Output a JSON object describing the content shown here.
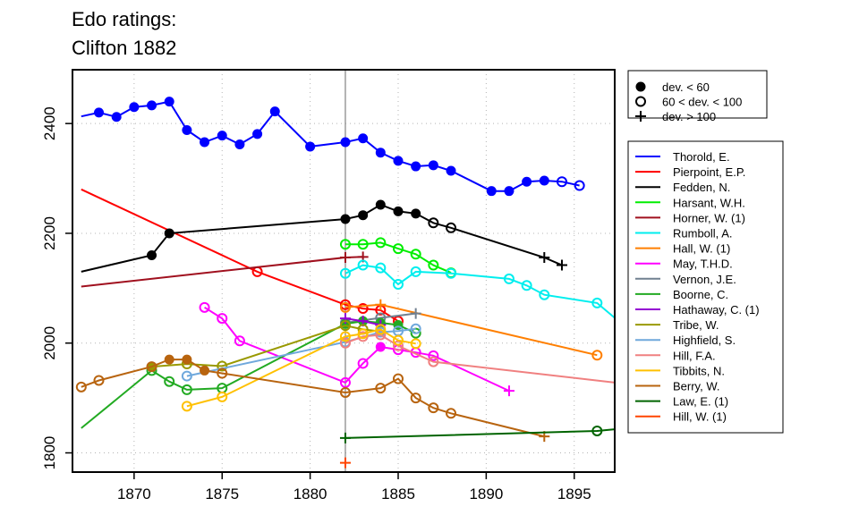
{
  "chart_data": {
    "type": "line",
    "title": [
      "Edo ratings:",
      "Clifton 1882"
    ],
    "xlabel": "",
    "ylabel": "",
    "xlim": [
      1866.5,
      1897.3
    ],
    "ylim": [
      1765,
      2498
    ],
    "x_ticks": [
      1870,
      1875,
      1880,
      1885,
      1890,
      1895
    ],
    "y_ticks": [
      1800,
      2000,
      2200,
      2400
    ],
    "grid": true,
    "reference_line_x": 1882,
    "marker_legend": [
      {
        "marker": "filled",
        "label": "dev. < 60"
      },
      {
        "marker": "open",
        "label": "60 < dev. < 100"
      },
      {
        "marker": "plus",
        "label": "dev. > 100"
      }
    ],
    "legend_position": "right",
    "series": [
      {
        "name": "Thorold, E.",
        "color": "#0000ff",
        "points": [
          [
            1867,
            2413,
            "none"
          ],
          [
            1868,
            2420,
            "filled"
          ],
          [
            1869,
            2412,
            "filled"
          ],
          [
            1870,
            2430,
            "filled"
          ],
          [
            1871,
            2433,
            "filled"
          ],
          [
            1872,
            2440,
            "filled"
          ],
          [
            1873,
            2388,
            "filled"
          ],
          [
            1874,
            2366,
            "filled"
          ],
          [
            1875,
            2378,
            "filled"
          ],
          [
            1876,
            2362,
            "filled"
          ],
          [
            1877,
            2381,
            "filled"
          ],
          [
            1878,
            2422,
            "filled"
          ],
          [
            1880,
            2358,
            "filled"
          ],
          [
            1882,
            2366,
            "filled"
          ],
          [
            1883,
            2373,
            "filled"
          ],
          [
            1884,
            2347,
            "filled"
          ],
          [
            1885,
            2332,
            "filled"
          ],
          [
            1886,
            2322,
            "filled"
          ],
          [
            1887,
            2324,
            "filled"
          ],
          [
            1888,
            2314,
            "filled"
          ],
          [
            1890.3,
            2277,
            "filled"
          ],
          [
            1891.3,
            2277,
            "filled"
          ],
          [
            1892.3,
            2294,
            "filled"
          ],
          [
            1893.3,
            2296,
            "filled"
          ],
          [
            1894.3,
            2294,
            "open"
          ],
          [
            1895.3,
            2287,
            "open"
          ]
        ]
      },
      {
        "name": "Pierpoint, E.P.",
        "color": "#ff0000",
        "points": [
          [
            1867,
            2280,
            "none"
          ],
          [
            1877,
            2130,
            "open"
          ],
          [
            1882,
            2070,
            "open"
          ],
          [
            1883,
            2063,
            "open"
          ],
          [
            1884,
            2060,
            "open"
          ],
          [
            1885,
            2040,
            "open"
          ]
        ]
      },
      {
        "name": "Fedden, N.",
        "color": "#000000",
        "points": [
          [
            1867,
            2130,
            "none"
          ],
          [
            1871,
            2160,
            "filled"
          ],
          [
            1872,
            2200,
            "filled"
          ],
          [
            1882,
            2226,
            "filled"
          ],
          [
            1883,
            2233,
            "filled"
          ],
          [
            1884,
            2252,
            "filled"
          ],
          [
            1885,
            2240,
            "filled"
          ],
          [
            1886,
            2236,
            "filled"
          ],
          [
            1887,
            2219,
            "open"
          ],
          [
            1888,
            2210,
            "open"
          ],
          [
            1893.3,
            2156,
            "plus"
          ],
          [
            1894.3,
            2142,
            "plus"
          ]
        ]
      },
      {
        "name": "Harsant, W.H.",
        "color": "#00ee00",
        "points": [
          [
            1882,
            2180,
            "open"
          ],
          [
            1883,
            2180,
            "open"
          ],
          [
            1884,
            2183,
            "open"
          ],
          [
            1885,
            2172,
            "open"
          ],
          [
            1886,
            2162,
            "open"
          ],
          [
            1887,
            2142,
            "open"
          ],
          [
            1888,
            2128,
            "open"
          ]
        ]
      },
      {
        "name": "Horner, W. (1)",
        "color": "#a0101e",
        "points": [
          [
            1867,
            2103,
            "none"
          ],
          [
            1882,
            2156,
            "plus"
          ],
          [
            1883,
            2157,
            "plus"
          ]
        ]
      },
      {
        "name": "Rumboll, A.",
        "color": "#00eeee",
        "points": [
          [
            1882,
            2127,
            "open"
          ],
          [
            1883,
            2142,
            "open"
          ],
          [
            1884,
            2137,
            "open"
          ],
          [
            1885,
            2107,
            "open"
          ],
          [
            1886,
            2130,
            "open"
          ],
          [
            1888,
            2127,
            "open"
          ],
          [
            1891.3,
            2117,
            "open"
          ],
          [
            1892.3,
            2105,
            "open"
          ],
          [
            1893.3,
            2088,
            "open"
          ],
          [
            1896.3,
            2073,
            "open"
          ],
          [
            1897.3,
            2046,
            "none"
          ]
        ]
      },
      {
        "name": "Hall, W. (1)",
        "color": "#ff7f00",
        "points": [
          [
            1882,
            2065,
            "open"
          ],
          [
            1884,
            2070,
            "plus"
          ],
          [
            1896.3,
            1978,
            "open"
          ]
        ]
      },
      {
        "name": "May, T.H.D.",
        "color": "#ff00ff",
        "points": [
          [
            1874,
            2065,
            "open"
          ],
          [
            1875,
            2045,
            "open"
          ],
          [
            1876,
            2004,
            "open"
          ],
          [
            1882,
            1928,
            "open"
          ],
          [
            1883,
            1963,
            "open"
          ],
          [
            1884,
            1993,
            "filled"
          ],
          [
            1885,
            1988,
            "open"
          ],
          [
            1886,
            1983,
            "open"
          ],
          [
            1887,
            1977,
            "open"
          ],
          [
            1891.3,
            1913,
            "plus"
          ]
        ]
      },
      {
        "name": "Vernon, J.E.",
        "color": "#708090",
        "points": [
          [
            1882,
            2037,
            "open"
          ],
          [
            1884,
            2046,
            "open"
          ],
          [
            1886,
            2054,
            "plus"
          ]
        ]
      },
      {
        "name": "Boorne, C.",
        "color": "#22aa22",
        "points": [
          [
            1867,
            1845,
            "none"
          ],
          [
            1871,
            1950,
            "open"
          ],
          [
            1872,
            1930,
            "open"
          ],
          [
            1873,
            1915,
            "open"
          ],
          [
            1875,
            1918,
            "open"
          ],
          [
            1882,
            2035,
            "filled"
          ],
          [
            1883,
            2040,
            "filled"
          ],
          [
            1884,
            2037,
            "filled"
          ],
          [
            1885,
            2033,
            "filled"
          ],
          [
            1886,
            2018,
            "open"
          ]
        ]
      },
      {
        "name": "Hathaway, C. (1)",
        "color": "#9400d3",
        "points": [
          [
            1882,
            2045,
            "plus"
          ],
          [
            1883,
            2040,
            "plus"
          ],
          [
            1884,
            2033,
            "plus"
          ]
        ]
      },
      {
        "name": "Tribe, W.",
        "color": "#999900",
        "points": [
          [
            1871,
            1957,
            "filled"
          ],
          [
            1873,
            1962,
            "open"
          ],
          [
            1875,
            1958,
            "open"
          ],
          [
            1882,
            2032,
            "open"
          ],
          [
            1883,
            2025,
            "open"
          ],
          [
            1884,
            2021,
            "open"
          ]
        ]
      },
      {
        "name": "Highfield, S.",
        "color": "#6fa8dc",
        "points": [
          [
            1873,
            1940,
            "open"
          ],
          [
            1882,
            2002,
            "open"
          ],
          [
            1884,
            2020,
            "open"
          ],
          [
            1885,
            2022,
            "open"
          ],
          [
            1886,
            2026,
            "open"
          ]
        ]
      },
      {
        "name": "Hill, F.A.",
        "color": "#f08080",
        "points": [
          [
            1882,
            2000,
            "open"
          ],
          [
            1883,
            2012,
            "open"
          ],
          [
            1884,
            2015,
            "open"
          ],
          [
            1885,
            1995,
            "open"
          ],
          [
            1887,
            1966,
            "open"
          ],
          [
            1897.3,
            1928,
            "none"
          ]
        ]
      },
      {
        "name": "Tibbits, N.",
        "color": "#ffc000",
        "points": [
          [
            1873,
            1885,
            "open"
          ],
          [
            1875,
            1902,
            "open"
          ],
          [
            1882,
            2012,
            "open"
          ],
          [
            1883,
            2017,
            "open"
          ],
          [
            1884,
            2025,
            "open"
          ],
          [
            1885,
            2005,
            "open"
          ],
          [
            1886,
            1999,
            "open"
          ]
        ]
      },
      {
        "name": "Berry, W.",
        "color": "#b8640f",
        "points": [
          [
            1867,
            1920,
            "open"
          ],
          [
            1868,
            1932,
            "open"
          ],
          [
            1871,
            1957,
            "open"
          ],
          [
            1872,
            1970,
            "filled"
          ],
          [
            1873,
            1970,
            "filled"
          ],
          [
            1874,
            1950,
            "filled"
          ],
          [
            1875,
            1945,
            "open"
          ],
          [
            1882,
            1910,
            "open"
          ],
          [
            1884,
            1918,
            "open"
          ],
          [
            1885,
            1935,
            "open"
          ],
          [
            1886,
            1900,
            "open"
          ],
          [
            1887,
            1882,
            "open"
          ],
          [
            1888,
            1872,
            "open"
          ],
          [
            1893.3,
            1830,
            "plus"
          ]
        ]
      },
      {
        "name": "Law, E. (1)",
        "color": "#006400",
        "points": [
          [
            1882,
            1827,
            "plus"
          ],
          [
            1896.3,
            1840,
            "open"
          ],
          [
            1897.3,
            1843,
            "none"
          ]
        ]
      },
      {
        "name": "Hill, W. (1)",
        "color": "#ff4500",
        "points": [
          [
            1882,
            1782,
            "plus"
          ]
        ]
      }
    ]
  }
}
